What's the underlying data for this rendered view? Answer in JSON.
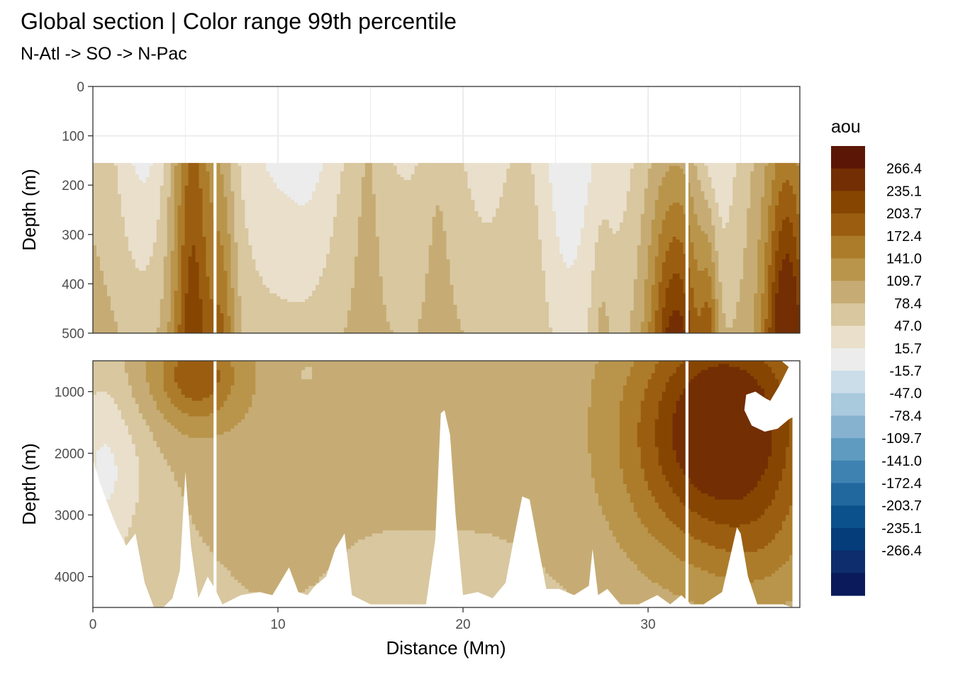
{
  "chart_data": {
    "type": "heatmap",
    "title": "Global section | Color range 99th percentile",
    "subtitle": "N-Atl -> SO -> N-Pac",
    "xlabel": "Distance (Mm)",
    "ylabel": "Depth (m)",
    "xlim": [
      0,
      38.2
    ],
    "x_ticks": [
      "0",
      "10",
      "20",
      "30"
    ],
    "x_tick_values": [
      0,
      10,
      20,
      30
    ],
    "grid": true,
    "legend_position": "right",
    "panels": [
      {
        "name": "upper",
        "ylim": [
          0,
          500
        ],
        "y_reversed": true,
        "y_ticks": [
          "0",
          "100",
          "200",
          "300",
          "400",
          "500"
        ],
        "y_tick_values": [
          0,
          100,
          200,
          300,
          400,
          500
        ]
      },
      {
        "name": "lower",
        "ylim": [
          500,
          4500
        ],
        "y_reversed": true,
        "y_ticks": [
          "1000",
          "2000",
          "3000",
          "4000"
        ],
        "y_tick_values": [
          1000,
          2000,
          3000,
          4000
        ]
      }
    ],
    "legend": {
      "title": "aou",
      "colors": [
        "#5c1605",
        "#732e03",
        "#874502",
        "#9b5e11",
        "#ad7c2b",
        "#b9954b",
        "#c6ac74",
        "#d8c79f",
        "#e9dfcb",
        "#ebeceb",
        "#cbdde9",
        "#a9c9dd",
        "#86b2d0",
        "#5f9bc0",
        "#3d82b1",
        "#21689f",
        "#0b528d",
        "#053d7a",
        "#0e2d6c",
        "#0a1a5a"
      ],
      "labels": [
        "266.4",
        "235.1",
        "203.7",
        "172.4",
        "141.0",
        "109.7",
        "78.4",
        "47.0",
        "15.7",
        "-15.7",
        "-47.0",
        "-78.4",
        "-109.7",
        "-141.0",
        "-172.4",
        "-203.7",
        "-235.1",
        "-266.4"
      ]
    }
  }
}
